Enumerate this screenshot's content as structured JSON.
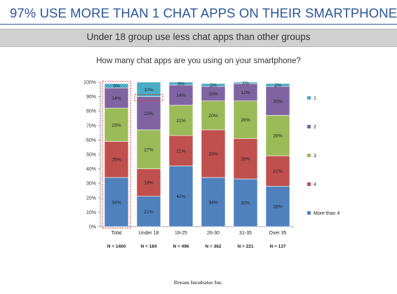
{
  "header": {
    "title": "97% USE MORE THAN 1 CHAT APPS ON THEIR SMARTPHONE",
    "subtitle": "Under 18 group use less chat apps than other groups"
  },
  "footer": {
    "company": "Dream Incubator Inc."
  },
  "chart_data": {
    "type": "bar",
    "stacked": true,
    "title": "How many chat apps are you using on your smartphone?",
    "categories": [
      "Total",
      "Under 18",
      "18-25",
      "26-30",
      "31-35",
      "Over 35"
    ],
    "sample_sizes": [
      "N = 1400",
      "N = 184",
      "N = 496",
      "N = 362",
      "N = 221",
      "N = 137"
    ],
    "highlighted_categories": [
      "Total",
      "Under 18"
    ],
    "ylim": [
      0,
      100
    ],
    "yticks": [
      "0%",
      "10%",
      "20%",
      "30%",
      "40%",
      "50%",
      "60%",
      "70%",
      "80%",
      "90%",
      "100%"
    ],
    "legend_position": "right",
    "series": [
      {
        "name": "More than 4",
        "color": "#4f81bd",
        "values": [
          34,
          21,
          42,
          34,
          33,
          28
        ],
        "labels": [
          "34%",
          "21%",
          "42%",
          "34%",
          "33%",
          "28%"
        ]
      },
      {
        "name": "4",
        "color": "#c0504d",
        "values": [
          25,
          19,
          21,
          33,
          28,
          21
        ],
        "labels": [
          "25%",
          "19%",
          "21%",
          "33%",
          "28%",
          "21%"
        ]
      },
      {
        "name": "3",
        "color": "#9bbb59",
        "values": [
          23,
          27,
          21,
          20,
          26,
          28
        ],
        "labels": [
          "23%",
          "27%",
          "21%",
          "20%",
          "26%",
          "28%"
        ]
      },
      {
        "name": "2",
        "color": "#8064a2",
        "values": [
          14,
          23,
          14,
          10,
          12,
          20
        ],
        "labels": [
          "14%",
          "23%",
          "14%",
          "10%",
          "12%",
          "20%"
        ]
      },
      {
        "name": "1",
        "color": "#4bacc6",
        "values": [
          3,
          10,
          3,
          2,
          1,
          2
        ],
        "labels": [
          "3%",
          "10%",
          "3%",
          "2%",
          "1%",
          "2%"
        ]
      }
    ]
  }
}
